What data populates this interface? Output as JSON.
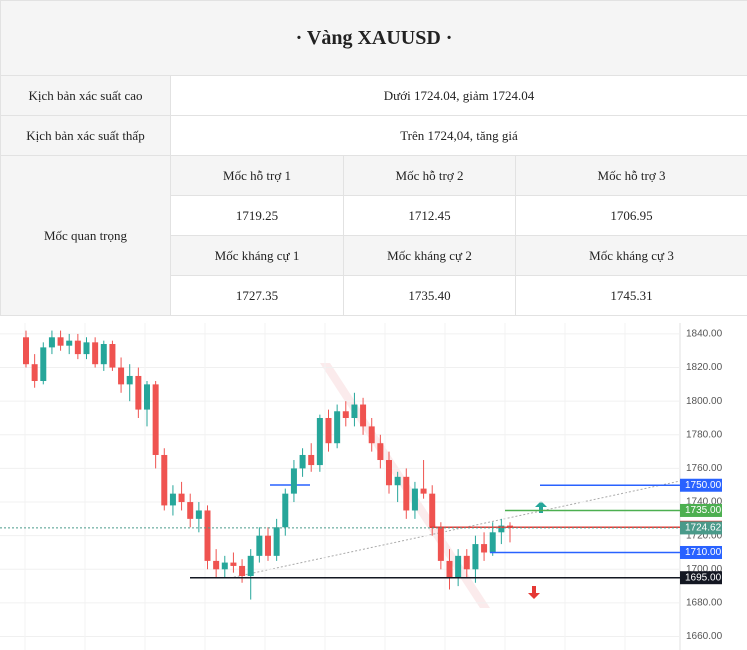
{
  "header": {
    "title": "· Vàng XAUUSD ·"
  },
  "table": {
    "rows": [
      [
        "Kịch bản xác suất cao",
        "Dưới 1724.04, giảm 1724.04"
      ],
      [
        "Kịch bản xác suất thấp",
        "Trên 1724,04, tăng giá"
      ]
    ],
    "key_label": "Mốc quan trọng",
    "grid": [
      [
        "Mốc hỗ trợ 1",
        "Mốc hỗ trợ 2",
        "Mốc hỗ trợ 3"
      ],
      [
        "1719.25",
        "1712.45",
        "1706.95"
      ],
      [
        "Mốc kháng cự 1",
        "Mốc kháng cự 2",
        "Mốc kháng cự 3"
      ],
      [
        "1727.35",
        "1735.40",
        "1745.31"
      ]
    ]
  },
  "chart_data": {
    "type": "candlestick",
    "candles": {
      "open": [
        1838,
        1822,
        1812,
        1832,
        1838,
        1833,
        1836,
        1828,
        1835,
        1822,
        1834,
        1820,
        1810,
        1815,
        1795,
        1810,
        1768,
        1738,
        1745,
        1740,
        1730,
        1735,
        1705,
        1700,
        1704,
        1702,
        1696,
        1708,
        1720,
        1708,
        1725,
        1745,
        1760,
        1768,
        1762,
        1790,
        1775,
        1794,
        1790,
        1798,
        1785,
        1775,
        1765,
        1750,
        1755,
        1735,
        1748,
        1745,
        1725,
        1705,
        1695,
        1708,
        1700,
        1715,
        1710,
        1722,
        1726
      ],
      "high": [
        1842,
        1828,
        1835,
        1842,
        1842,
        1840,
        1840,
        1838,
        1838,
        1836,
        1836,
        1826,
        1822,
        1820,
        1812,
        1812,
        1772,
        1750,
        1752,
        1745,
        1740,
        1738,
        1712,
        1708,
        1710,
        1706,
        1712,
        1725,
        1725,
        1730,
        1748,
        1765,
        1772,
        1775,
        1792,
        1795,
        1798,
        1800,
        1805,
        1802,
        1790,
        1780,
        1770,
        1758,
        1760,
        1752,
        1765,
        1750,
        1728,
        1712,
        1712,
        1712,
        1720,
        1722,
        1728,
        1730,
        1728
      ],
      "low": [
        1820,
        1808,
        1810,
        1828,
        1830,
        1828,
        1825,
        1825,
        1820,
        1818,
        1818,
        1805,
        1800,
        1790,
        1785,
        1760,
        1735,
        1732,
        1735,
        1725,
        1722,
        1700,
        1695,
        1695,
        1698,
        1692,
        1682,
        1704,
        1705,
        1705,
        1720,
        1740,
        1755,
        1758,
        1758,
        1770,
        1772,
        1785,
        1785,
        1780,
        1770,
        1760,
        1745,
        1740,
        1730,
        1730,
        1742,
        1720,
        1700,
        1688,
        1690,
        1695,
        1692,
        1705,
        1708,
        1715,
        1716
      ],
      "close": [
        1822,
        1812,
        1832,
        1838,
        1833,
        1836,
        1828,
        1835,
        1822,
        1834,
        1820,
        1810,
        1815,
        1795,
        1810,
        1768,
        1738,
        1745,
        1740,
        1730,
        1735,
        1705,
        1700,
        1704,
        1702,
        1696,
        1708,
        1720,
        1708,
        1725,
        1745,
        1760,
        1768,
        1762,
        1790,
        1775,
        1794,
        1790,
        1798,
        1785,
        1775,
        1765,
        1750,
        1755,
        1735,
        1748,
        1745,
        1725,
        1705,
        1695,
        1708,
        1700,
        1715,
        1710,
        1722,
        1726,
        1724.62
      ]
    },
    "up_color": "#26a69a",
    "down_color": "#ef5350",
    "ylim": [
      1652,
      1846.5
    ],
    "yticks": [
      {
        "value": 1660,
        "label": "1660.00"
      },
      {
        "value": 1680,
        "label": "1680.00"
      },
      {
        "value": 1700,
        "label": "1700.00"
      },
      {
        "value": 1720,
        "label": "1720.00"
      },
      {
        "value": 1740,
        "label": "1740.00"
      },
      {
        "value": 1760,
        "label": "1760.00"
      },
      {
        "value": 1780,
        "label": "1780.00"
      },
      {
        "value": 1800,
        "label": "1800.00"
      },
      {
        "value": 1820,
        "label": "1820.00"
      },
      {
        "value": 1840,
        "label": "1840.00"
      }
    ],
    "grid": true,
    "levels": [
      {
        "value": 1750,
        "label": "1750.00",
        "color": "#2962ff"
      },
      {
        "value": 1735,
        "label": "1735.00",
        "color": "#4caf50"
      },
      {
        "value": 1725,
        "label": "1725.00",
        "color": "#e53935"
      },
      {
        "value": 1724.62,
        "label": "1724.62",
        "color": "#4a9a8a"
      },
      {
        "value": 1710,
        "label": "1710.00",
        "color": "#2962ff"
      },
      {
        "value": 1695,
        "label": "1695.00",
        "color": "#131722"
      }
    ]
  }
}
